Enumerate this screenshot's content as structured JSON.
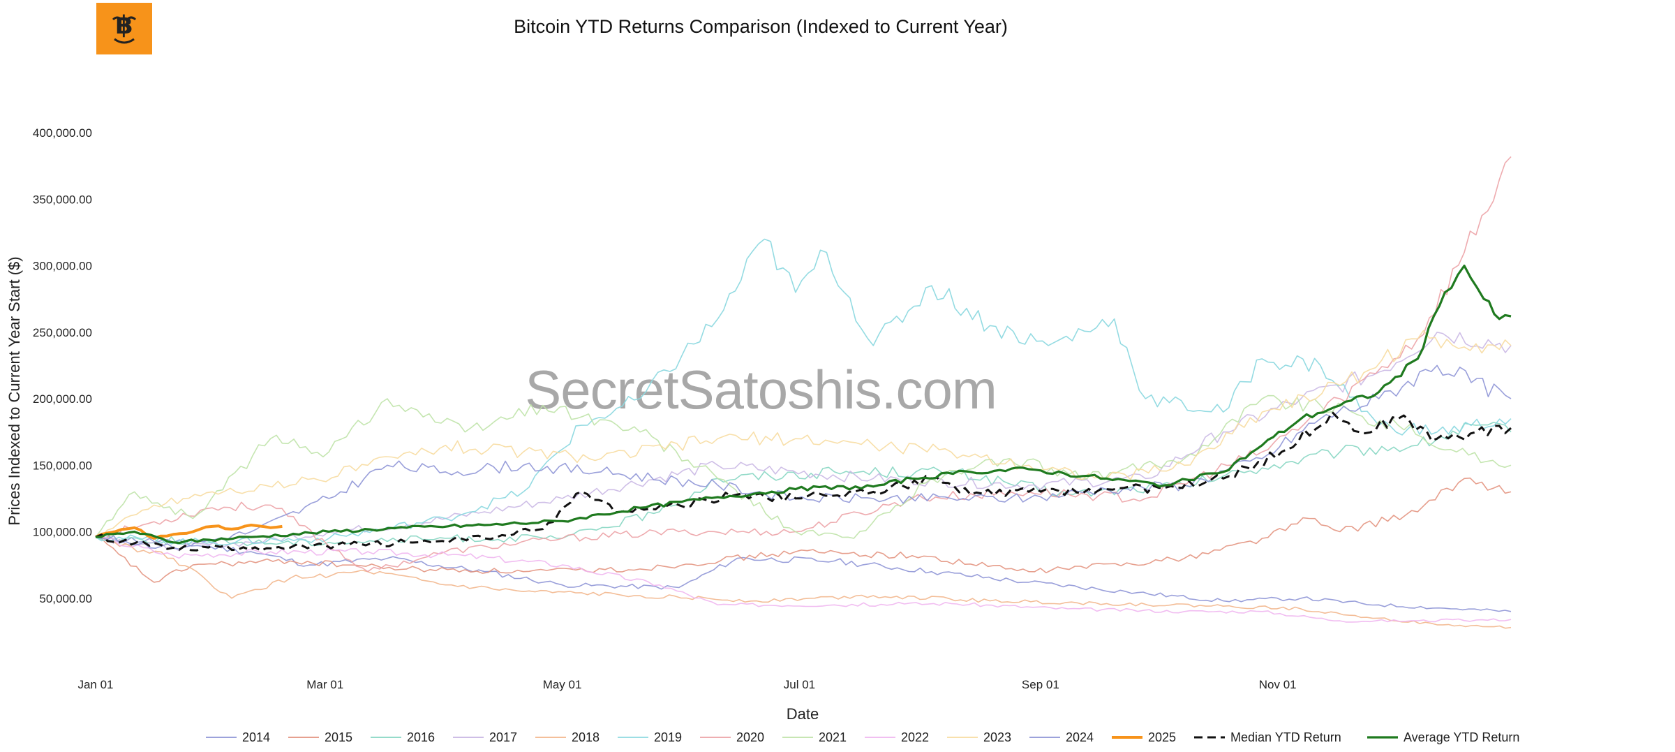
{
  "logo": {
    "icon": "bitcoin-emoji-logo-icon",
    "color": "#f7931a"
  },
  "watermark": "SecretSatoshis.com",
  "chart_data": {
    "type": "line",
    "title": "Bitcoin YTD Returns Comparison (Indexed to Current Year)",
    "xlabel": "Date",
    "ylabel": "Prices Indexed to Current Year Start ($)",
    "xlim": [
      "Jan 01",
      "Dec 31"
    ],
    "ylim": [
      0,
      420000
    ],
    "x_ticks": [
      {
        "label": "Jan 01",
        "day": 0
      },
      {
        "label": "Mar 01",
        "day": 59
      },
      {
        "label": "May 01",
        "day": 120
      },
      {
        "label": "Jul 01",
        "day": 181
      },
      {
        "label": "Sep 01",
        "day": 243
      },
      {
        "label": "Nov 01",
        "day": 304
      }
    ],
    "y_ticks": [
      {
        "label": "50,000.00",
        "value": 50000
      },
      {
        "label": "100,000.00",
        "value": 100000
      },
      {
        "label": "150,000.00",
        "value": 150000
      },
      {
        "label": "200,000.00",
        "value": 200000
      },
      {
        "label": "250,000.00",
        "value": 250000
      },
      {
        "label": "300,000.00",
        "value": 300000
      },
      {
        "label": "350,000.00",
        "value": 350000
      },
      {
        "label": "400,000.00",
        "value": 400000
      }
    ],
    "grid": false,
    "legend_position": "bottom",
    "series": [
      {
        "name": "2014",
        "color": "#8e95d6",
        "dash": false,
        "width": 1.6,
        "opacity": 0.9,
        "points": [
          [
            0,
            96000
          ],
          [
            20,
            92000
          ],
          [
            40,
            85000
          ],
          [
            55,
            75000
          ],
          [
            75,
            80000
          ],
          [
            100,
            70000
          ],
          [
            120,
            60000
          ],
          [
            150,
            58000
          ],
          [
            165,
            80000
          ],
          [
            190,
            78000
          ],
          [
            215,
            70000
          ],
          [
            240,
            62000
          ],
          [
            265,
            55000
          ],
          [
            290,
            48000
          ],
          [
            310,
            50000
          ],
          [
            330,
            45000
          ],
          [
            350,
            42000
          ],
          [
            364,
            40000
          ]
        ]
      },
      {
        "name": "2015",
        "color": "#e3937f",
        "dash": false,
        "width": 1.6,
        "opacity": 0.9,
        "points": [
          [
            0,
            96000
          ],
          [
            15,
            62000
          ],
          [
            25,
            75000
          ],
          [
            50,
            78000
          ],
          [
            80,
            72000
          ],
          [
            110,
            70000
          ],
          [
            140,
            72000
          ],
          [
            180,
            85000
          ],
          [
            210,
            82000
          ],
          [
            240,
            70000
          ],
          [
            280,
            80000
          ],
          [
            300,
            95000
          ],
          [
            312,
            110000
          ],
          [
            320,
            100000
          ],
          [
            340,
            115000
          ],
          [
            352,
            140000
          ],
          [
            364,
            130000
          ]
        ]
      },
      {
        "name": "2016",
        "color": "#86d6c2",
        "dash": false,
        "width": 1.6,
        "opacity": 0.9,
        "points": [
          [
            0,
            96000
          ],
          [
            30,
            92000
          ],
          [
            60,
            92000
          ],
          [
            90,
            95000
          ],
          [
            120,
            95000
          ],
          [
            145,
            115000
          ],
          [
            160,
            140000
          ],
          [
            190,
            145000
          ],
          [
            220,
            145000
          ],
          [
            250,
            128000
          ],
          [
            280,
            135000
          ],
          [
            300,
            148000
          ],
          [
            320,
            160000
          ],
          [
            340,
            165000
          ],
          [
            355,
            180000
          ],
          [
            364,
            175000
          ]
        ]
      },
      {
        "name": "2017",
        "color": "#c7b4e3",
        "dash": false,
        "width": 1.6,
        "opacity": 0.85,
        "points": [
          [
            0,
            96000
          ],
          [
            20,
            88000
          ],
          [
            40,
            92000
          ],
          [
            60,
            100000
          ],
          [
            80,
            105000
          ],
          [
            100,
            115000
          ],
          [
            120,
            125000
          ],
          [
            160,
            150000
          ],
          [
            200,
            140000
          ],
          [
            240,
            135000
          ],
          [
            270,
            140000
          ],
          [
            290,
            175000
          ],
          [
            310,
            200000
          ],
          [
            330,
            220000
          ],
          [
            345,
            250000
          ],
          [
            364,
            240000
          ]
        ]
      },
      {
        "name": "2018",
        "color": "#f2b68c",
        "dash": false,
        "width": 1.6,
        "opacity": 0.9,
        "points": [
          [
            0,
            96000
          ],
          [
            20,
            80000
          ],
          [
            35,
            50000
          ],
          [
            50,
            65000
          ],
          [
            70,
            70000
          ],
          [
            90,
            60000
          ],
          [
            110,
            55000
          ],
          [
            140,
            52000
          ],
          [
            170,
            48000
          ],
          [
            200,
            52000
          ],
          [
            230,
            48000
          ],
          [
            260,
            46000
          ],
          [
            290,
            44000
          ],
          [
            310,
            42000
          ],
          [
            330,
            35000
          ],
          [
            345,
            30000
          ],
          [
            364,
            28000
          ]
        ]
      },
      {
        "name": "2019",
        "color": "#8ed9e0",
        "dash": false,
        "width": 1.6,
        "opacity": 0.95,
        "points": [
          [
            0,
            96000
          ],
          [
            30,
            92000
          ],
          [
            60,
            95000
          ],
          [
            90,
            110000
          ],
          [
            110,
            130000
          ],
          [
            125,
            180000
          ],
          [
            140,
            200000
          ],
          [
            160,
            260000
          ],
          [
            172,
            320000
          ],
          [
            180,
            280000
          ],
          [
            188,
            310000
          ],
          [
            200,
            240000
          ],
          [
            215,
            285000
          ],
          [
            230,
            255000
          ],
          [
            245,
            240000
          ],
          [
            262,
            260000
          ],
          [
            270,
            200000
          ],
          [
            290,
            190000
          ],
          [
            300,
            230000
          ],
          [
            315,
            225000
          ],
          [
            330,
            180000
          ],
          [
            345,
            175000
          ],
          [
            364,
            185000
          ]
        ]
      },
      {
        "name": "2020",
        "color": "#eca2a6",
        "dash": false,
        "width": 1.6,
        "opacity": 0.9,
        "points": [
          [
            0,
            96000
          ],
          [
            30,
            118000
          ],
          [
            45,
            120000
          ],
          [
            70,
            70000
          ],
          [
            90,
            85000
          ],
          [
            120,
            95000
          ],
          [
            150,
            100000
          ],
          [
            180,
            100000
          ],
          [
            210,
            125000
          ],
          [
            240,
            130000
          ],
          [
            270,
            125000
          ],
          [
            300,
            160000
          ],
          [
            320,
            200000
          ],
          [
            340,
            245000
          ],
          [
            352,
            310000
          ],
          [
            364,
            382000
          ]
        ]
      },
      {
        "name": "2021",
        "color": "#bfe3a8",
        "dash": false,
        "width": 1.6,
        "opacity": 0.9,
        "points": [
          [
            0,
            96000
          ],
          [
            10,
            130000
          ],
          [
            25,
            110000
          ],
          [
            45,
            170000
          ],
          [
            60,
            160000
          ],
          [
            75,
            200000
          ],
          [
            95,
            175000
          ],
          [
            115,
            195000
          ],
          [
            140,
            175000
          ],
          [
            160,
            140000
          ],
          [
            180,
            100000
          ],
          [
            195,
            95000
          ],
          [
            215,
            140000
          ],
          [
            235,
            155000
          ],
          [
            255,
            140000
          ],
          [
            280,
            155000
          ],
          [
            300,
            200000
          ],
          [
            315,
            195000
          ],
          [
            335,
            180000
          ],
          [
            350,
            160000
          ],
          [
            364,
            150000
          ]
        ]
      },
      {
        "name": "2022",
        "color": "#efb6ef",
        "dash": false,
        "width": 1.6,
        "opacity": 0.9,
        "points": [
          [
            0,
            96000
          ],
          [
            20,
            82000
          ],
          [
            45,
            85000
          ],
          [
            70,
            85000
          ],
          [
            95,
            82000
          ],
          [
            120,
            75000
          ],
          [
            145,
            60000
          ],
          [
            160,
            45000
          ],
          [
            190,
            45000
          ],
          [
            220,
            46000
          ],
          [
            250,
            42000
          ],
          [
            280,
            40000
          ],
          [
            300,
            40000
          ],
          [
            320,
            33000
          ],
          [
            340,
            33000
          ],
          [
            364,
            34000
          ]
        ]
      },
      {
        "name": "2023",
        "color": "#f7dba0",
        "dash": false,
        "width": 1.6,
        "opacity": 0.9,
        "points": [
          [
            0,
            96000
          ],
          [
            15,
            120000
          ],
          [
            30,
            130000
          ],
          [
            50,
            135000
          ],
          [
            70,
            150000
          ],
          [
            90,
            165000
          ],
          [
            110,
            160000
          ],
          [
            130,
            155000
          ],
          [
            160,
            170000
          ],
          [
            180,
            170000
          ],
          [
            200,
            165000
          ],
          [
            220,
            160000
          ],
          [
            240,
            150000
          ],
          [
            260,
            140000
          ],
          [
            280,
            150000
          ],
          [
            300,
            190000
          ],
          [
            320,
            210000
          ],
          [
            340,
            245000
          ],
          [
            364,
            240000
          ]
        ]
      },
      {
        "name": "2024",
        "color": "#8e95d6",
        "dash": false,
        "width": 1.6,
        "opacity": 0.9,
        "points": [
          [
            0,
            96000
          ],
          [
            20,
            88000
          ],
          [
            40,
            100000
          ],
          [
            60,
            125000
          ],
          [
            75,
            150000
          ],
          [
            90,
            145000
          ],
          [
            110,
            150000
          ],
          [
            130,
            145000
          ],
          [
            160,
            135000
          ],
          [
            180,
            125000
          ],
          [
            200,
            125000
          ],
          [
            220,
            125000
          ],
          [
            240,
            125000
          ],
          [
            260,
            132000
          ],
          [
            280,
            135000
          ],
          [
            300,
            155000
          ],
          [
            315,
            185000
          ],
          [
            330,
            200000
          ],
          [
            345,
            225000
          ],
          [
            364,
            200000
          ]
        ]
      },
      {
        "name": "2025",
        "color": "#f7931a",
        "dash": false,
        "width": 4,
        "opacity": 1,
        "points": [
          [
            0,
            96000
          ],
          [
            5,
            100000
          ],
          [
            10,
            103000
          ],
          [
            15,
            95000
          ],
          [
            20,
            98000
          ],
          [
            25,
            100000
          ],
          [
            30,
            104000
          ],
          [
            35,
            102000
          ],
          [
            40,
            105000
          ],
          [
            45,
            103000
          ],
          [
            48,
            104000
          ]
        ]
      },
      {
        "name": "Median YTD Return",
        "color": "#111111",
        "dash": true,
        "width": 3,
        "opacity": 1,
        "points": [
          [
            0,
            96000
          ],
          [
            20,
            88000
          ],
          [
            50,
            88000
          ],
          [
            80,
            92000
          ],
          [
            100,
            95000
          ],
          [
            115,
            102000
          ],
          [
            125,
            130000
          ],
          [
            135,
            115000
          ],
          [
            150,
            120000
          ],
          [
            165,
            128000
          ],
          [
            180,
            125000
          ],
          [
            200,
            130000
          ],
          [
            215,
            140000
          ],
          [
            225,
            128000
          ],
          [
            240,
            130000
          ],
          [
            260,
            132000
          ],
          [
            275,
            133000
          ],
          [
            290,
            140000
          ],
          [
            305,
            160000
          ],
          [
            318,
            190000
          ],
          [
            325,
            175000
          ],
          [
            335,
            185000
          ],
          [
            345,
            170000
          ],
          [
            355,
            175000
          ],
          [
            364,
            178000
          ]
        ]
      },
      {
        "name": "Average YTD Return",
        "color": "#1f7a1f",
        "dash": false,
        "width": 3.2,
        "opacity": 1,
        "points": [
          [
            0,
            96000
          ],
          [
            10,
            100000
          ],
          [
            20,
            92000
          ],
          [
            40,
            96000
          ],
          [
            60,
            100000
          ],
          [
            80,
            103000
          ],
          [
            100,
            105000
          ],
          [
            120,
            108000
          ],
          [
            140,
            118000
          ],
          [
            160,
            126000
          ],
          [
            180,
            132000
          ],
          [
            200,
            134000
          ],
          [
            210,
            140000
          ],
          [
            225,
            145000
          ],
          [
            240,
            147000
          ],
          [
            260,
            140000
          ],
          [
            275,
            135000
          ],
          [
            290,
            145000
          ],
          [
            300,
            165000
          ],
          [
            310,
            185000
          ],
          [
            320,
            195000
          ],
          [
            330,
            205000
          ],
          [
            340,
            230000
          ],
          [
            347,
            280000
          ],
          [
            352,
            300000
          ],
          [
            357,
            275000
          ],
          [
            361,
            260000
          ],
          [
            364,
            262000
          ]
        ]
      }
    ]
  }
}
